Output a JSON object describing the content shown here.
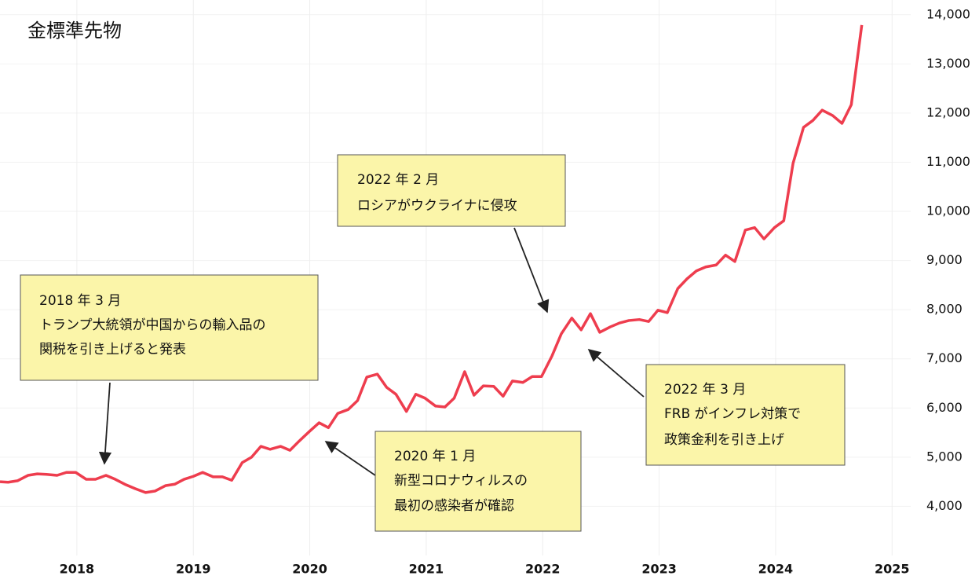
{
  "chart_data": {
    "type": "line",
    "title": "金標準先物",
    "x": [
      2017.34,
      2017.41,
      2017.49,
      2017.58,
      2017.66,
      2017.74,
      2017.83,
      2017.91,
      2017.99,
      2018.08,
      2018.16,
      2018.25,
      2018.33,
      2018.42,
      2018.5,
      2018.59,
      2018.67,
      2018.76,
      2018.84,
      2018.92,
      2019.0,
      2019.08,
      2019.17,
      2019.25,
      2019.33,
      2019.42,
      2019.5,
      2019.58,
      2019.66,
      2019.75,
      2019.83,
      2019.91,
      2020.0,
      2020.08,
      2020.16,
      2020.24,
      2020.33,
      2020.41,
      2020.49,
      2020.58,
      2020.66,
      2020.74,
      2020.83,
      2020.91,
      2020.99,
      2021.08,
      2021.16,
      2021.24,
      2021.33,
      2021.41,
      2021.49,
      2021.58,
      2021.66,
      2021.74,
      2021.83,
      2021.91,
      2021.99,
      2022.08,
      2022.16,
      2022.25,
      2022.33,
      2022.41,
      2022.49,
      2022.58,
      2022.66,
      2022.74,
      2022.83,
      2022.91,
      2022.99,
      2023.07,
      2023.16,
      2023.24,
      2023.32,
      2023.4,
      2023.49,
      2023.57,
      2023.65,
      2023.74,
      2023.82,
      2023.9,
      2023.99,
      2024.07,
      2024.15,
      2024.24,
      2024.32,
      2024.4,
      2024.49,
      2024.57,
      2024.65,
      2024.74
    ],
    "series": [
      {
        "name": "金標準先物",
        "color": "#ee3d4e",
        "values": [
          4500,
          4490,
          4520,
          4630,
          4660,
          4650,
          4630,
          4690,
          4690,
          4550,
          4550,
          4630,
          4550,
          4440,
          4360,
          4280,
          4310,
          4420,
          4450,
          4550,
          4610,
          4690,
          4600,
          4600,
          4530,
          4890,
          5000,
          5220,
          5160,
          5220,
          5140,
          5330,
          5530,
          5700,
          5600,
          5890,
          5970,
          6150,
          6630,
          6690,
          6420,
          6280,
          5930,
          6280,
          6200,
          6040,
          6020,
          6200,
          6740,
          6260,
          6450,
          6440,
          6240,
          6550,
          6520,
          6640,
          6640,
          7060,
          7510,
          7830,
          7590,
          7920,
          7540,
          7650,
          7730,
          7780,
          7800,
          7760,
          7990,
          7940,
          8430,
          8630,
          8790,
          8870,
          8910,
          9110,
          8980,
          9620,
          9670,
          9440,
          9670,
          9810,
          10980,
          11710,
          11850,
          12060,
          11950,
          11790,
          12170,
          13790
        ]
      }
    ],
    "xlim": [
      2017.34,
      2025.16
    ],
    "xticks": [
      2018,
      2019,
      2020,
      2021,
      2022,
      2023,
      2024,
      2025
    ],
    "ylim": [
      3000,
      14300
    ],
    "yticks": [
      {
        "value": 4000,
        "label": "4,000"
      },
      {
        "value": 5000,
        "label": "5,000"
      },
      {
        "value": 6000,
        "label": "6,000"
      },
      {
        "value": 7000,
        "label": "7,000"
      },
      {
        "value": 8000,
        "label": "8,000"
      },
      {
        "value": 9000,
        "label": "9,000"
      },
      {
        "value": 10000,
        "label": "10,000"
      },
      {
        "value": 11000,
        "label": "11,000"
      },
      {
        "value": 12000,
        "label": "12,000"
      },
      {
        "value": 13000,
        "label": "13,000"
      },
      {
        "value": 14000,
        "label": "14,000"
      }
    ],
    "grid": true,
    "annotations": [
      {
        "lines": [
          "2018 年 3 月",
          "トランプ大統領が中国からの輸入品の",
          "関税を引き上げると発表"
        ]
      },
      {
        "lines": [
          "2022 年 2 月",
          "ロシアがウクライナに侵攻"
        ]
      },
      {
        "lines": [
          "2020 年 1 月",
          "新型コロナウィルスの",
          "最初の感染者が確認"
        ]
      },
      {
        "lines": [
          "2022 年 3 月",
          "FRB がインフレ対策で",
          "政策金利を引き上げ"
        ]
      }
    ]
  }
}
